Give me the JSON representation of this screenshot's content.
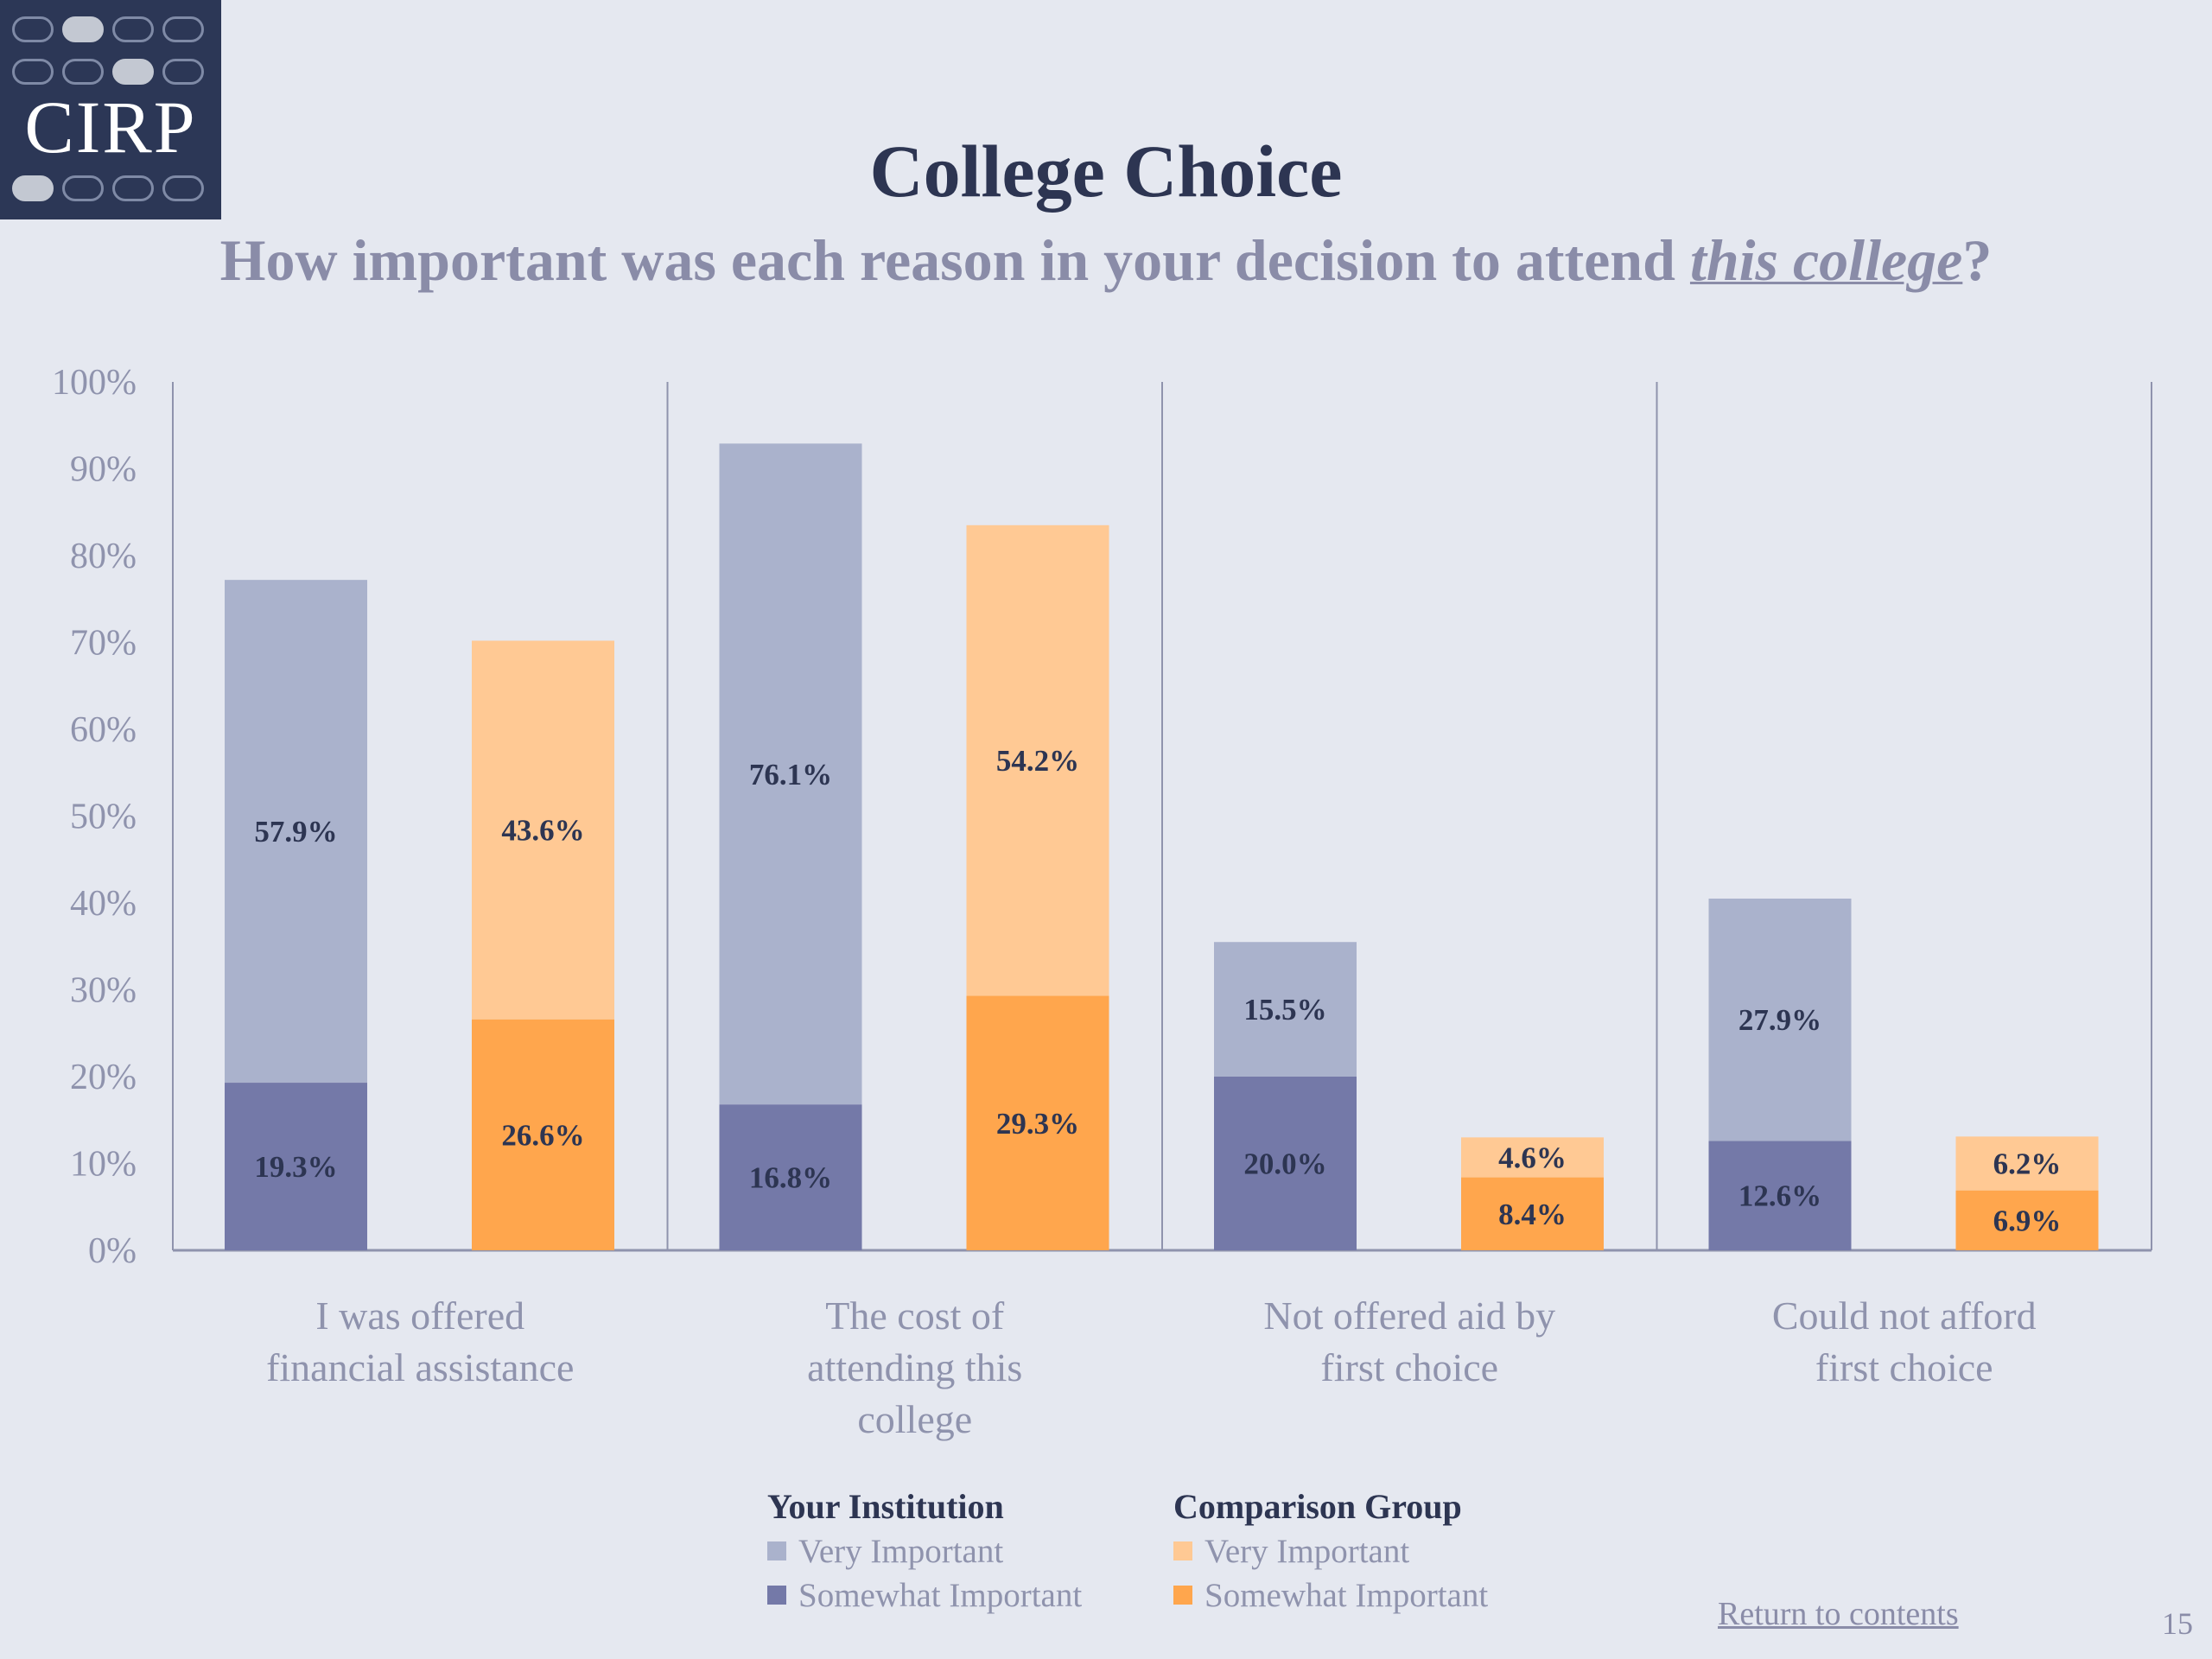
{
  "logo": {
    "text": "CIRP"
  },
  "title": "College Choice",
  "subtitle": {
    "before": "How important was each reason in your decision to attend ",
    "emphasis": "this college",
    "after": "?"
  },
  "legend": {
    "institution_title": "Your Institution",
    "comparison_title": "Comparison Group",
    "very_important": "Very Important",
    "somewhat_important": "Somewhat Important"
  },
  "return_link": "Return to contents",
  "page_number": "15",
  "colors": {
    "inst_very": "#aab2cc",
    "inst_somewhat": "#7479a8",
    "comp_very": "#ffc994",
    "comp_somewhat": "#ffa64d"
  },
  "chart_data": {
    "type": "bar",
    "stacked": true,
    "title": "College Choice",
    "subtitle": "How important was each reason in your decision to attend this college?",
    "categories": [
      [
        "I was offered",
        "financial assistance"
      ],
      [
        "The cost of",
        "attending this",
        "college"
      ],
      [
        "Not offered aid by",
        "first choice"
      ],
      [
        "Could not afford",
        "first choice"
      ]
    ],
    "ylim": [
      0,
      100
    ],
    "yticks": [
      "0%",
      "10%",
      "20%",
      "30%",
      "40%",
      "50%",
      "60%",
      "70%",
      "80%",
      "90%",
      "100%"
    ],
    "grid": false,
    "legend_position": "bottom",
    "groups": [
      {
        "name": "Your Institution",
        "series": [
          {
            "name": "Somewhat Important",
            "values": [
              19.3,
              16.8,
              20.0,
              12.6
            ],
            "labels": [
              "19.3%",
              "16.8%",
              "20.0%",
              "12.6%"
            ]
          },
          {
            "name": "Very Important",
            "values": [
              57.9,
              76.1,
              15.5,
              27.9
            ],
            "labels": [
              "57.9%",
              "76.1%",
              "15.5%",
              "27.9%"
            ]
          }
        ]
      },
      {
        "name": "Comparison Group",
        "series": [
          {
            "name": "Somewhat Important",
            "values": [
              26.6,
              29.3,
              8.4,
              6.9
            ],
            "labels": [
              "26.6%",
              "29.3%",
              "8.4%",
              "6.9%"
            ]
          },
          {
            "name": "Very Important",
            "values": [
              43.6,
              54.2,
              4.6,
              6.2
            ],
            "labels": [
              "43.6%",
              "54.2%",
              "4.6%",
              "6.2%"
            ]
          }
        ]
      }
    ]
  }
}
